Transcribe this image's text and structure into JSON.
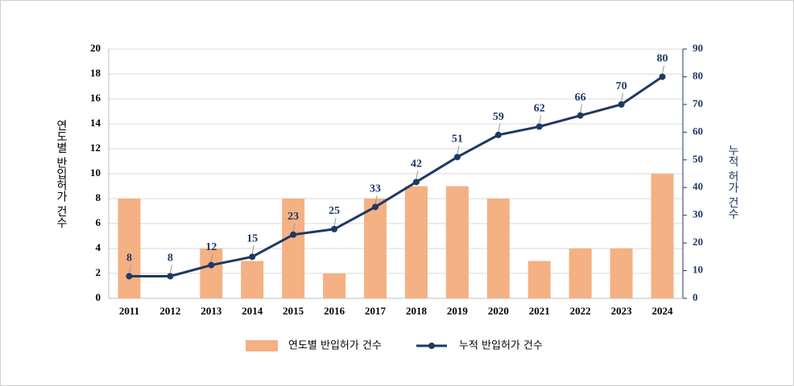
{
  "chart_data": {
    "type": "bar-line",
    "y_label": "연도별 반입허가 건수",
    "y2_label": "누적 허가 건수",
    "categories": [
      "2011",
      "2012",
      "2013",
      "2014",
      "2015",
      "2016",
      "2017",
      "2018",
      "2019",
      "2020",
      "2021",
      "2022",
      "2023",
      "2024"
    ],
    "series": [
      {
        "name": "연도별 반입허가 건수",
        "type": "bar",
        "color": "#f4b183",
        "values": [
          8,
          0,
          4,
          3,
          8,
          2,
          8,
          9,
          9,
          8,
          3,
          4,
          4,
          10
        ]
      },
      {
        "name": "누적 반입허가 건수",
        "type": "line",
        "axis": "y2",
        "color": "#1f3864",
        "values": [
          8,
          8,
          12,
          15,
          23,
          25,
          33,
          42,
          51,
          59,
          62,
          66,
          70,
          80
        ]
      }
    ],
    "ylim": [
      0,
      20
    ],
    "yticks": [
      0,
      2,
      4,
      6,
      8,
      10,
      12,
      14,
      16,
      18,
      20
    ],
    "y2lim": [
      0,
      90
    ],
    "y2ticks": [
      0,
      10,
      20,
      30,
      40,
      50,
      60,
      70,
      80,
      90
    ],
    "grid": true
  }
}
